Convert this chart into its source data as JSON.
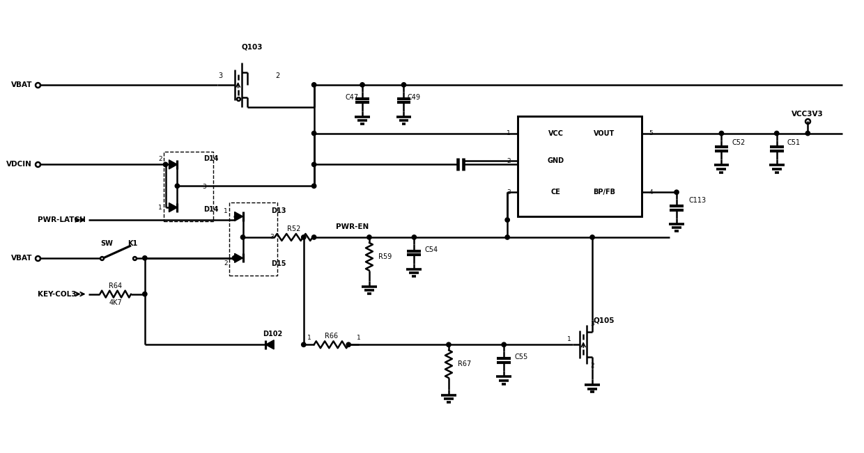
{
  "bg_color": "#ffffff",
  "line_color": "#000000",
  "lw": 1.8,
  "fig_width": 12.4,
  "fig_height": 6.51,
  "xlim": [
    0,
    124
  ],
  "ylim": [
    0,
    65.1
  ]
}
